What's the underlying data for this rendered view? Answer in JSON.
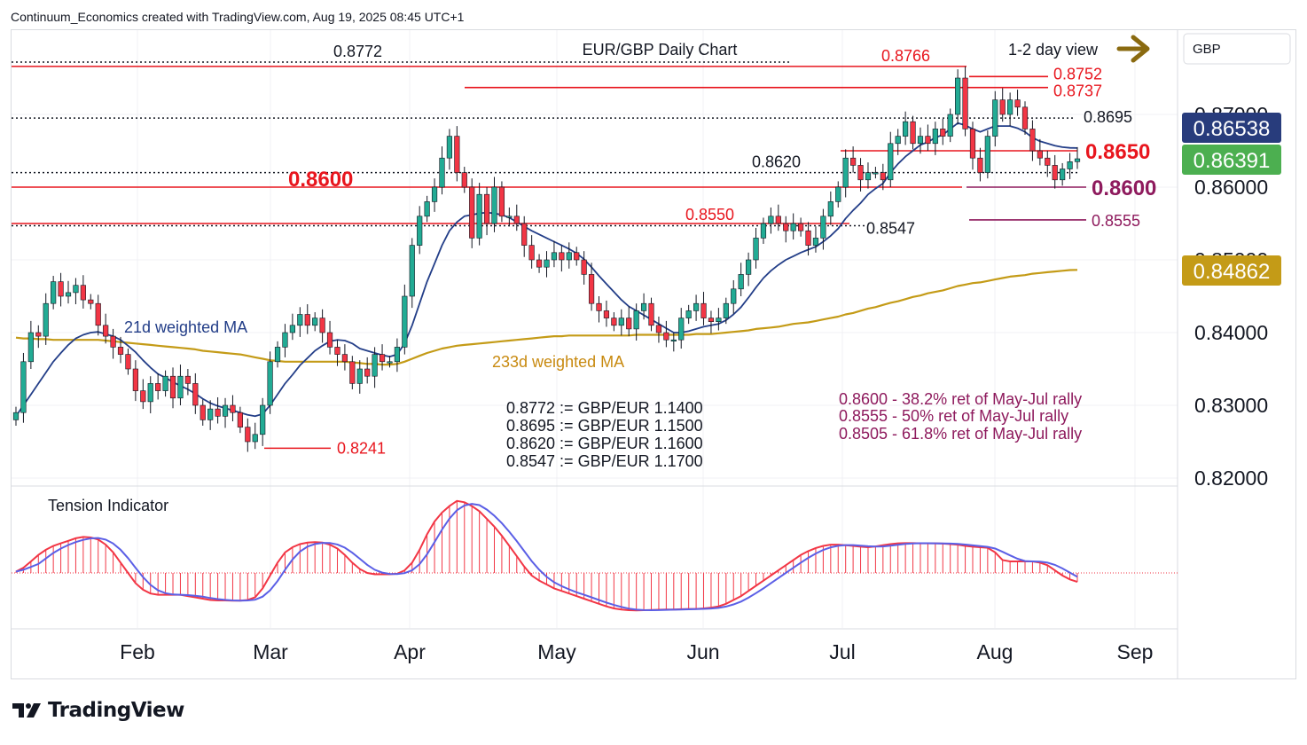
{
  "header": {
    "attribution": "Continuum_Economics created with TradingView.com, Aug 19, 2025 08:45 UTC+1"
  },
  "footer": {
    "brand": "TradingView"
  },
  "colors": {
    "bull": "#22ab94",
    "bear": "#f23645",
    "resistance_red": "#e8161e",
    "support_purple": "#8e1a5d",
    "ma21": "#233e88",
    "ma233": "#c49b17",
    "tension_red": "#f23645",
    "tension_blue": "#5b5fe6"
  },
  "chart_data": {
    "type": "candlestick",
    "title": "EUR/GBP Daily Chart",
    "view_label": "1-2 day view",
    "currency": "GBP",
    "ylim": [
      0.8175,
      0.88
    ],
    "y_ticks": [
      "0.82000",
      "0.83000",
      "0.84000",
      "0.85000",
      "0.86000",
      "0.87000"
    ],
    "x_ticks": [
      "Feb",
      "Mar",
      "Apr",
      "May",
      "Jun",
      "Jul",
      "Aug",
      "Sep"
    ],
    "price_badges": [
      {
        "value": "0.86538",
        "kind": "ma21"
      },
      {
        "value": "0.86391",
        "kind": "last"
      },
      {
        "value": "0.84862",
        "kind": "ma233"
      }
    ],
    "levels": [
      {
        "label": "0.8772",
        "value": 0.8772,
        "style": "dotted",
        "color": "black"
      },
      {
        "label": "0.8766",
        "value": 0.8766,
        "style": "solid",
        "color": "red"
      },
      {
        "label": "0.8752",
        "value": 0.8752,
        "style": "solid",
        "color": "red"
      },
      {
        "label": "0.8737",
        "value": 0.8737,
        "style": "solid",
        "color": "red"
      },
      {
        "label": "0.8695",
        "value": 0.8695,
        "style": "dotted",
        "color": "black"
      },
      {
        "label": "0.8650",
        "value": 0.865,
        "style": "solid",
        "color": "red"
      },
      {
        "label": "0.8620",
        "value": 0.862,
        "style": "dotted",
        "color": "black"
      },
      {
        "label": "0.8600",
        "value": 0.86,
        "style": "solid",
        "color": "red"
      },
      {
        "label": "0.8600",
        "value": 0.86,
        "style": "solid",
        "color": "purple"
      },
      {
        "label": "0.8555",
        "value": 0.8555,
        "style": "solid",
        "color": "purple"
      },
      {
        "label": "0.8550",
        "value": 0.855,
        "style": "solid",
        "color": "red"
      },
      {
        "label": "0.8547",
        "value": 0.8547,
        "style": "dotted",
        "color": "black"
      },
      {
        "label": "0.8241",
        "value": 0.8241,
        "style": "solid",
        "color": "red"
      }
    ],
    "ma_labels": {
      "ma21": "21d weighted MA",
      "ma233": "233d weighted MA"
    },
    "conversions": [
      "0.8772 := GBP/EUR 1.1400",
      "0.8695 := GBP/EUR 1.1500",
      "0.8620 := GBP/EUR 1.1600",
      "0.8547 := GBP/EUR 1.1700"
    ],
    "retracements": [
      "0.8600 - 38.2% ret of May-Jul rally",
      "0.8555 - 50% ret of May-Jul rally",
      "0.8505 - 61.8% ret of May-Jul rally"
    ],
    "tension_title": "Tension Indicator",
    "closes": [
      0.829,
      0.836,
      0.84,
      0.8395,
      0.844,
      0.847,
      0.845,
      0.8455,
      0.8465,
      0.8445,
      0.844,
      0.841,
      0.8395,
      0.838,
      0.837,
      0.835,
      0.832,
      0.8305,
      0.833,
      0.832,
      0.834,
      0.831,
      0.834,
      0.833,
      0.83,
      0.828,
      0.8295,
      0.8285,
      0.83,
      0.829,
      0.827,
      0.825,
      0.826,
      0.83,
      0.836,
      0.838,
      0.84,
      0.841,
      0.8425,
      0.841,
      0.842,
      0.84,
      0.838,
      0.837,
      0.836,
      0.833,
      0.835,
      0.834,
      0.837,
      0.836,
      0.836,
      0.838,
      0.845,
      0.852,
      0.856,
      0.858,
      0.86,
      0.864,
      0.867,
      0.862,
      0.86,
      0.853,
      0.859,
      0.855,
      0.86,
      0.856,
      0.856,
      0.855,
      0.852,
      0.85,
      0.849,
      0.85,
      0.851,
      0.85,
      0.851,
      0.85,
      0.848,
      0.844,
      0.843,
      0.842,
      0.841,
      0.842,
      0.8405,
      0.843,
      0.844,
      0.841,
      0.84,
      0.839,
      0.839,
      0.842,
      0.843,
      0.844,
      0.842,
      0.8415,
      0.842,
      0.844,
      0.846,
      0.848,
      0.85,
      0.853,
      0.855,
      0.856,
      0.855,
      0.854,
      0.855,
      0.854,
      0.852,
      0.853,
      0.856,
      0.858,
      0.86,
      0.864,
      0.863,
      0.861,
      0.862,
      0.862,
      0.861,
      0.866,
      0.867,
      0.869,
      0.866,
      0.867,
      0.866,
      0.868,
      0.867,
      0.87,
      0.875,
      0.868,
      0.864,
      0.862,
      0.867,
      0.872,
      0.87,
      0.872,
      0.871,
      0.868,
      0.865,
      0.864,
      0.863,
      0.861,
      0.8625,
      0.8635,
      0.8639
    ],
    "ma21": [
      0.8285,
      0.83,
      0.8315,
      0.833,
      0.8345,
      0.836,
      0.8372,
      0.8383,
      0.8392,
      0.8397,
      0.84,
      0.8401,
      0.8398,
      0.8395,
      0.839,
      0.8382,
      0.8373,
      0.8362,
      0.8352,
      0.8343,
      0.8338,
      0.8332,
      0.8327,
      0.8322,
      0.8316,
      0.8309,
      0.8303,
      0.8299,
      0.8296,
      0.8293,
      0.829,
      0.8287,
      0.8285,
      0.8288,
      0.83,
      0.8315,
      0.833,
      0.8342,
      0.8355,
      0.8365,
      0.8375,
      0.8382,
      0.8388,
      0.839,
      0.8389,
      0.8385,
      0.8378,
      0.8375,
      0.8372,
      0.8369,
      0.8367,
      0.837,
      0.8385,
      0.841,
      0.844,
      0.847,
      0.8495,
      0.852,
      0.854,
      0.8552,
      0.856,
      0.8562,
      0.8564,
      0.8565,
      0.8564,
      0.8562,
      0.8558,
      0.8552,
      0.8546,
      0.854,
      0.8535,
      0.853,
      0.8525,
      0.852,
      0.8515,
      0.8509,
      0.8501,
      0.849,
      0.8478,
      0.8467,
      0.8456,
      0.8445,
      0.8436,
      0.843,
      0.8424,
      0.8418,
      0.8412,
      0.8406,
      0.84,
      0.84,
      0.8402,
      0.8405,
      0.8408,
      0.841,
      0.8412,
      0.8417,
      0.8425,
      0.8435,
      0.8448,
      0.8462,
      0.8475,
      0.8485,
      0.8493,
      0.85,
      0.8505,
      0.851,
      0.8514,
      0.8518,
      0.8525,
      0.8533,
      0.8543,
      0.8557,
      0.8568,
      0.8578,
      0.859,
      0.8598,
      0.8605,
      0.862,
      0.8632,
      0.8642,
      0.865,
      0.8658,
      0.8662,
      0.8668,
      0.8672,
      0.868,
      0.8688,
      0.8685,
      0.868,
      0.8676,
      0.868,
      0.8684,
      0.8684,
      0.8684,
      0.8681,
      0.8676,
      0.8668,
      0.8663,
      0.866,
      0.8657,
      0.8655,
      0.8654,
      0.86538
    ],
    "ma233": [
      0.8393,
      0.8392,
      0.8392,
      0.8391,
      0.8391,
      0.839,
      0.839,
      0.839,
      0.839,
      0.839,
      0.839,
      0.839,
      0.8389,
      0.8388,
      0.8387,
      0.8386,
      0.8385,
      0.8384,
      0.8383,
      0.8382,
      0.8381,
      0.838,
      0.8379,
      0.8378,
      0.8377,
      0.8375,
      0.8374,
      0.8373,
      0.8372,
      0.8371,
      0.837,
      0.8368,
      0.8366,
      0.8364,
      0.8362,
      0.8361,
      0.836,
      0.836,
      0.836,
      0.836,
      0.836,
      0.836,
      0.836,
      0.836,
      0.836,
      0.8359,
      0.8358,
      0.8357,
      0.8357,
      0.8356,
      0.8356,
      0.8357,
      0.836,
      0.8364,
      0.8368,
      0.8372,
      0.8375,
      0.8378,
      0.838,
      0.8382,
      0.8383,
      0.8384,
      0.8385,
      0.8386,
      0.8387,
      0.8388,
      0.8389,
      0.839,
      0.8391,
      0.8392,
      0.8393,
      0.8394,
      0.8395,
      0.8395,
      0.8396,
      0.8396,
      0.8396,
      0.8396,
      0.8396,
      0.8396,
      0.8396,
      0.8396,
      0.8396,
      0.8397,
      0.8397,
      0.8397,
      0.8397,
      0.8397,
      0.8397,
      0.8397,
      0.8397,
      0.8398,
      0.8398,
      0.8398,
      0.8399,
      0.84,
      0.8401,
      0.8402,
      0.8403,
      0.8405,
      0.8406,
      0.8407,
      0.8408,
      0.841,
      0.8412,
      0.8413,
      0.8414,
      0.8416,
      0.8418,
      0.842,
      0.8422,
      0.8425,
      0.8427,
      0.843,
      0.8433,
      0.8435,
      0.8438,
      0.8441,
      0.8443,
      0.8446,
      0.8449,
      0.8451,
      0.8454,
      0.8456,
      0.8458,
      0.8461,
      0.8464,
      0.8466,
      0.8468,
      0.8469,
      0.8471,
      0.8473,
      0.8475,
      0.8477,
      0.8478,
      0.8479,
      0.8481,
      0.8482,
      0.8483,
      0.8484,
      0.8485,
      0.8486,
      0.84862
    ],
    "tension": [
      0.05,
      0.2,
      0.45,
      0.7,
      0.9,
      1.05,
      1.15,
      1.25,
      1.35,
      1.4,
      1.38,
      1.3,
      1.1,
      0.8,
      0.4,
      0.0,
      -0.4,
      -0.65,
      -0.8,
      -0.85,
      -0.85,
      -0.85,
      -0.85,
      -0.9,
      -0.95,
      -1.0,
      -1.05,
      -1.07,
      -1.07,
      -1.08,
      -1.08,
      -1.05,
      -0.95,
      -0.6,
      -0.1,
      0.4,
      0.8,
      1.0,
      1.12,
      1.18,
      1.2,
      1.18,
      1.1,
      0.95,
      0.7,
      0.4,
      0.15,
      0.0,
      -0.05,
      -0.05,
      -0.05,
      -0.03,
      0.1,
      0.4,
      0.9,
      1.5,
      2.0,
      2.35,
      2.6,
      2.8,
      2.75,
      2.6,
      2.4,
      2.1,
      1.8,
      1.45,
      1.05,
      0.65,
      0.25,
      -0.1,
      -0.3,
      -0.45,
      -0.6,
      -0.7,
      -0.8,
      -0.9,
      -1.0,
      -1.1,
      -1.2,
      -1.3,
      -1.38,
      -1.42,
      -1.45,
      -1.46,
      -1.45,
      -1.44,
      -1.43,
      -1.42,
      -1.42,
      -1.41,
      -1.4,
      -1.4,
      -1.38,
      -1.35,
      -1.3,
      -1.2,
      -1.05,
      -0.9,
      -0.7,
      -0.5,
      -0.3,
      -0.1,
      0.1,
      0.3,
      0.5,
      0.7,
      0.85,
      0.97,
      1.05,
      1.1,
      1.1,
      1.08,
      1.05,
      1.02,
      1.0,
      1.03,
      1.08,
      1.12,
      1.15,
      1.16,
      1.16,
      1.15,
      1.15,
      1.15,
      1.14,
      1.12,
      1.1,
      1.05,
      1.02,
      1.0,
      0.98,
      0.8,
      0.5,
      0.45,
      0.45,
      0.45,
      0.45,
      0.4,
      0.3,
      0.1,
      -0.1,
      -0.25,
      -0.35
    ]
  }
}
